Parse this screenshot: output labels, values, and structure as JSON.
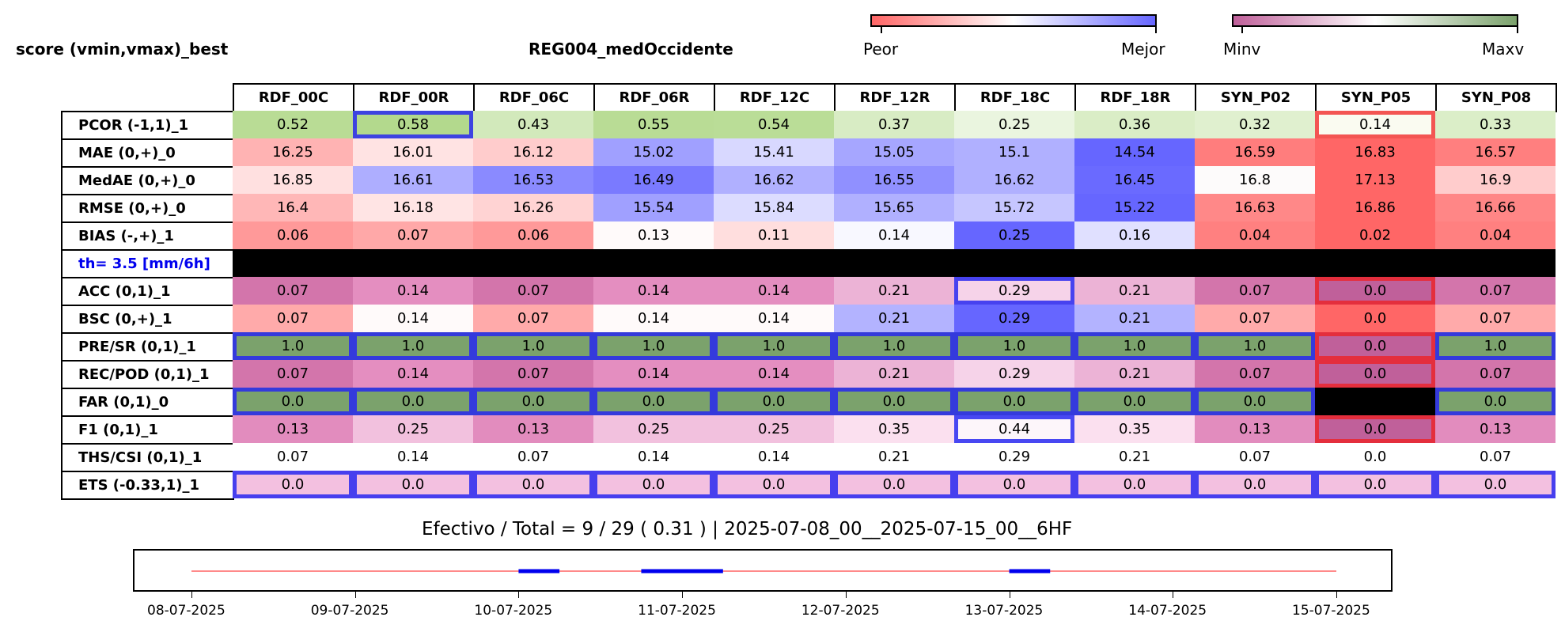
{
  "header": {
    "score_title": "score (vmin,vmax)_best",
    "region_title": "REG004_medOccidente"
  },
  "colorbars": [
    {
      "left_label": "Peor",
      "right_label": "Mejor",
      "left_color": "#ff6666",
      "mid_color": "#ffffff",
      "right_color": "#6666ff"
    },
    {
      "left_label": "Minv",
      "right_label": "Maxv",
      "left_color": "#c0609a",
      "mid_color": "#ffffff",
      "right_color": "#7ba26c"
    }
  ],
  "chart_data": [
    {
      "type": "heatmap",
      "columns": [
        "RDF_00C",
        "RDF_00R",
        "RDF_06C",
        "RDF_06R",
        "RDF_12C",
        "RDF_12R",
        "RDF_18C",
        "RDF_18R",
        "SYN_P02",
        "SYN_P05",
        "SYN_P08"
      ],
      "rows": [
        {
          "label": "PCOR (-1,1)_1",
          "label_color": "#000000",
          "values": [
            "0.52",
            "0.58",
            "0.43",
            "0.55",
            "0.54",
            "0.37",
            "0.25",
            "0.36",
            "0.32",
            "0.14",
            "0.33"
          ],
          "colors": [
            "#b9dc95",
            "#b3d98d",
            "#d2e9bb",
            "#b9dc95",
            "#badd97",
            "#d8ecc4",
            "#eaf5df",
            "#daedc6",
            "#e0f0cf",
            "#fafbf1",
            "#dbeec8"
          ],
          "best": [
            1
          ],
          "worst": [
            9
          ]
        },
        {
          "label": "MAE (0,+)_0",
          "label_color": "#000000",
          "values": [
            "16.25",
            "16.01",
            "16.12",
            "15.02",
            "15.41",
            "15.05",
            "15.1",
            "14.54",
            "16.59",
            "16.83",
            "16.57"
          ],
          "colors": [
            "#ffb3b3",
            "#ffe3e3",
            "#ffcccc",
            "#a0a0ff",
            "#d8d8ff",
            "#a6a6ff",
            "#b0b0ff",
            "#6666ff",
            "#ff7d7d",
            "#ff6666",
            "#ff7f7f"
          ],
          "best": [],
          "worst": []
        },
        {
          "label": "MedAE (0,+)_0",
          "label_color": "#000000",
          "values": [
            "16.85",
            "16.61",
            "16.53",
            "16.49",
            "16.62",
            "16.55",
            "16.62",
            "16.45",
            "16.8",
            "17.13",
            "16.9"
          ],
          "colors": [
            "#ffe0e0",
            "#aeaeff",
            "#8a8aff",
            "#7a7aff",
            "#b0b0ff",
            "#9090ff",
            "#b0b0ff",
            "#6a6aff",
            "#fdfbfb",
            "#ff6666",
            "#ffcccc"
          ],
          "best": [],
          "worst": []
        },
        {
          "label": "RMSE (0,+)_0",
          "label_color": "#000000",
          "values": [
            "16.4",
            "16.18",
            "16.26",
            "15.54",
            "15.84",
            "15.65",
            "15.72",
            "15.22",
            "16.63",
            "16.86",
            "16.66"
          ],
          "colors": [
            "#ffb7b7",
            "#ffe4e4",
            "#ffd3d3",
            "#a0a0ff",
            "#dcdcff",
            "#b0b0ff",
            "#c6c6ff",
            "#6666ff",
            "#ff8888",
            "#ff6666",
            "#ff8686"
          ],
          "best": [],
          "worst": []
        },
        {
          "label": "BIAS (-,+)_1",
          "label_color": "#000000",
          "values": [
            "0.06",
            "0.07",
            "0.06",
            "0.13",
            "0.11",
            "0.14",
            "0.25",
            "0.16",
            "0.04",
            "0.02",
            "0.04"
          ],
          "colors": [
            "#ff9999",
            "#ffa8a8",
            "#ff9999",
            "#fffafa",
            "#ffdede",
            "#f8f8ff",
            "#6666ff",
            "#e0e0ff",
            "#ff8080",
            "#ff6666",
            "#ff8080"
          ],
          "best": [],
          "worst": []
        },
        {
          "label": "th= 3.5 [mm/6h]",
          "label_color": "#0000ee",
          "values": [
            "",
            "",
            "",
            "",
            "",
            "",
            "",
            "",
            "",
            "",
            ""
          ],
          "colors": [
            "#000000",
            "#000000",
            "#000000",
            "#000000",
            "#000000",
            "#000000",
            "#000000",
            "#000000",
            "#000000",
            "#000000",
            "#000000"
          ],
          "best": [],
          "worst": []
        },
        {
          "label": "ACC (0,1)_1",
          "label_color": "#000000",
          "values": [
            "0.07",
            "0.14",
            "0.07",
            "0.14",
            "0.14",
            "0.21",
            "0.29",
            "0.21",
            "0.07",
            "0.0",
            "0.07"
          ],
          "colors": [
            "#d375ab",
            "#e48ec0",
            "#d375ab",
            "#e48ec0",
            "#e48ec0",
            "#ecb3d6",
            "#f6d3e9",
            "#ecb3d6",
            "#d375ab",
            "#c0609a",
            "#d375ab"
          ],
          "best": [
            6
          ],
          "worst": [
            9
          ]
        },
        {
          "label": "BSC (0,+)_1",
          "label_color": "#000000",
          "values": [
            "0.07",
            "0.14",
            "0.07",
            "0.14",
            "0.14",
            "0.21",
            "0.29",
            "0.21",
            "0.07",
            "0.0",
            "0.07"
          ],
          "colors": [
            "#ffaaaa",
            "#fffafa",
            "#ffaaaa",
            "#fffafa",
            "#fffafa",
            "#b3b3ff",
            "#6666ff",
            "#b3b3ff",
            "#ffaaaa",
            "#ff6666",
            "#ffaaaa"
          ],
          "best": [],
          "worst": []
        },
        {
          "label": "PRE/SR (0,1)_1",
          "label_color": "#000000",
          "values": [
            "1.0",
            "1.0",
            "1.0",
            "1.0",
            "1.0",
            "1.0",
            "1.0",
            "1.0",
            "1.0",
            "0.0",
            "1.0"
          ],
          "colors": [
            "#7ba26c",
            "#7ba26c",
            "#7ba26c",
            "#7ba26c",
            "#7ba26c",
            "#7ba26c",
            "#7ba26c",
            "#7ba26c",
            "#7ba26c",
            "#c0609a",
            "#7ba26c"
          ],
          "best": [
            0,
            1,
            2,
            3,
            4,
            5,
            6,
            7,
            8,
            10
          ],
          "worst": [
            9
          ]
        },
        {
          "label": "REC/POD (0,1)_1",
          "label_color": "#000000",
          "values": [
            "0.07",
            "0.14",
            "0.07",
            "0.14",
            "0.14",
            "0.21",
            "0.29",
            "0.21",
            "0.07",
            "0.0",
            "0.07"
          ],
          "colors": [
            "#d375ab",
            "#e48ec0",
            "#d375ab",
            "#e48ec0",
            "#e48ec0",
            "#ecb3d6",
            "#f6d3e9",
            "#ecb3d6",
            "#d375ab",
            "#c0609a",
            "#d375ab"
          ],
          "best": [],
          "worst": [
            9
          ]
        },
        {
          "label": "FAR (0,1)_0",
          "label_color": "#000000",
          "values": [
            "0.0",
            "0.0",
            "0.0",
            "0.0",
            "0.0",
            "0.0",
            "0.0",
            "0.0",
            "0.0",
            "",
            "0.0"
          ],
          "colors": [
            "#7ba26c",
            "#7ba26c",
            "#7ba26c",
            "#7ba26c",
            "#7ba26c",
            "#7ba26c",
            "#7ba26c",
            "#7ba26c",
            "#7ba26c",
            "#000000",
            "#7ba26c"
          ],
          "best": [
            0,
            1,
            2,
            3,
            4,
            5,
            6,
            7,
            8,
            10
          ],
          "worst": []
        },
        {
          "label": "F1 (0,1)_1",
          "label_color": "#000000",
          "values": [
            "0.13",
            "0.25",
            "0.13",
            "0.25",
            "0.25",
            "0.35",
            "0.44",
            "0.35",
            "0.13",
            "0.0",
            "0.13"
          ],
          "colors": [
            "#e28cbe",
            "#f2c1de",
            "#e28cbe",
            "#f2c1de",
            "#f2c1de",
            "#fbe0ef",
            "#fdf6fa",
            "#fbe0ef",
            "#e28cbe",
            "#c0609a",
            "#e28cbe"
          ],
          "best": [
            6
          ],
          "worst": [
            9
          ]
        },
        {
          "label": "THS/CSI (0,1)_1",
          "label_color": "#000000",
          "values": [
            "0.07",
            "0.14",
            "0.07",
            "0.14",
            "0.14",
            "0.21",
            "0.29",
            "0.21",
            "0.07",
            "0.0",
            "0.07"
          ],
          "colors": [
            "#ffffff",
            "#ffffff",
            "#ffffff",
            "#ffffff",
            "#ffffff",
            "#ffffff",
            "#ffffff",
            "#ffffff",
            "#ffffff",
            "#ffffff",
            "#ffffff"
          ],
          "best": [],
          "worst": []
        },
        {
          "label": "ETS (-0.33,1)_1",
          "label_color": "#000000",
          "values": [
            "0.0",
            "0.0",
            "0.0",
            "0.0",
            "0.0",
            "0.0",
            "0.0",
            "0.0",
            "0.0",
            "0.0",
            "0.0"
          ],
          "colors": [
            "#f3c0e0",
            "#f3c0e0",
            "#f3c0e0",
            "#f3c0e0",
            "#f3c0e0",
            "#f3c0e0",
            "#f3c0e0",
            "#f3c0e0",
            "#f3c0e0",
            "#f3c0e0",
            "#f3c0e0"
          ],
          "best": [
            0,
            1,
            2,
            3,
            4,
            5,
            6,
            7,
            8,
            9,
            10
          ],
          "worst": []
        }
      ]
    },
    {
      "type": "line",
      "title": "Efectivo / Total  =  9 / 29 ( 0.31 ) | 2025-07-08_00__2025-07-15_00__6HF",
      "x_tick_labels": [
        "08-07-2025",
        "09-07-2025",
        "10-07-2025",
        "11-07-2025",
        "12-07-2025",
        "13-07-2025",
        "14-07-2025",
        "15-07-2025"
      ],
      "x_range_days": [
        0,
        7
      ],
      "baseline_color": "#ff4444",
      "effective_color": "#0000ee",
      "effective_segments_days": [
        [
          2.0,
          2.25
        ],
        [
          2.75,
          3.25
        ],
        [
          5.0,
          5.25
        ]
      ]
    }
  ]
}
